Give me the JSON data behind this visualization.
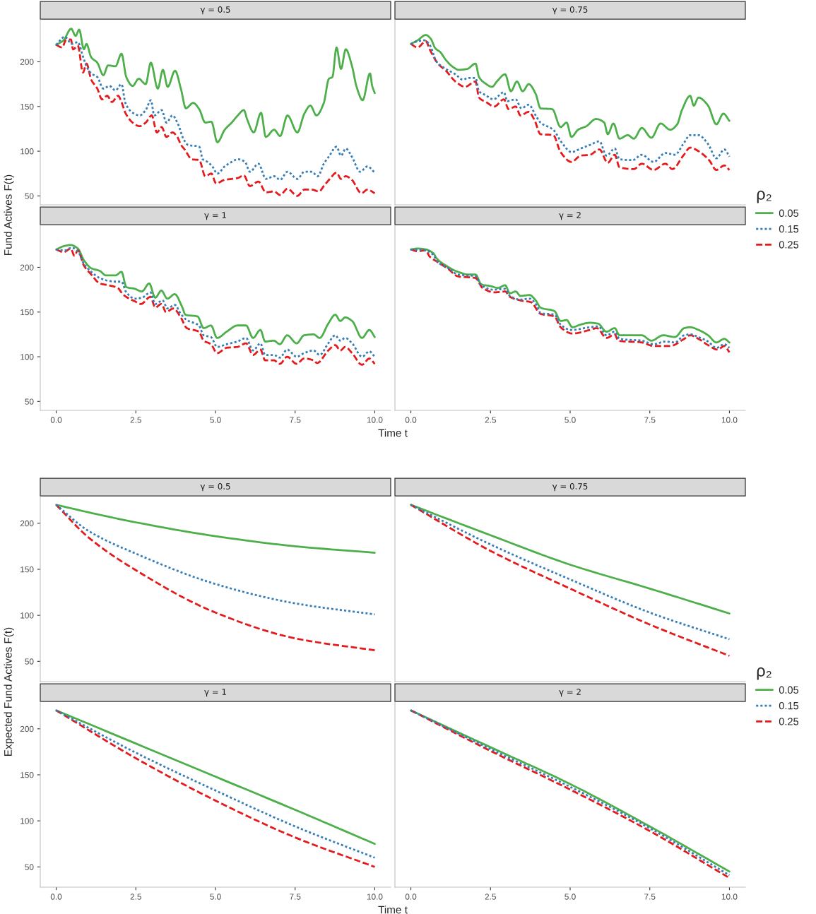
{
  "chart_data": [
    {
      "type": "line",
      "title": "γ = 0.5",
      "ylabel": "Fund Actives F(t)",
      "legend": "right",
      "legend_title": "ρ₂",
      "xlim": [
        -0.5,
        10.5
      ],
      "ylim": [
        40,
        247
      ],
      "yticks": [
        50,
        100,
        150,
        200
      ],
      "tick_labels": "y",
      "series": [
        {
          "name": "0.05",
          "color": "#4daf4a",
          "line_style": "solid",
          "x": [
            0,
            0.23,
            0.47,
            0.61,
            0.72,
            0.87,
            0.95,
            1.1,
            1.29,
            1.48,
            1.63,
            1.86,
            2.05,
            2.2,
            2.4,
            2.59,
            2.81,
            2.97,
            3.19,
            3.35,
            3.5,
            3.73,
            3.92,
            4.07,
            4.3,
            4.49,
            4.68,
            4.87,
            5.06,
            5.29,
            5.51,
            5.7,
            5.89,
            6.0,
            6.2,
            6.43,
            6.58,
            6.84,
            7.03,
            7.26,
            7.57,
            7.79,
            7.98,
            8.17,
            8.4,
            8.56,
            8.67,
            8.8,
            8.94,
            9.09,
            9.28,
            9.43,
            9.62,
            9.85,
            9.92,
            10
          ],
          "values": [
            219,
            224,
            237,
            229,
            236,
            214,
            220,
            205,
            199,
            185,
            196,
            195,
            209,
            183,
            173,
            181,
            175,
            199,
            170,
            191,
            172,
            190,
            169,
            148,
            154,
            147,
            132,
            133,
            110,
            124,
            132,
            140,
            146,
            135,
            121,
            143,
            116,
            124,
            117,
            140,
            121,
            142,
            151,
            140,
            154,
            181,
            183,
            216,
            192,
            214,
            196,
            172,
            157,
            187,
            173,
            165
          ]
        },
        {
          "name": "0.15",
          "color": "#377eb8",
          "line_style": "dotted",
          "x": [
            0,
            0.27,
            0.49,
            0.68,
            0.84,
            0.95,
            1.1,
            1.29,
            1.48,
            1.67,
            1.86,
            2.05,
            2.17,
            2.4,
            2.62,
            2.81,
            2.97,
            3.08,
            3.31,
            3.46,
            3.65,
            3.84,
            3.99,
            4.14,
            4.49,
            4.6,
            4.75,
            4.9,
            5.06,
            5.29,
            5.51,
            5.7,
            5.93,
            6.08,
            6.35,
            6.58,
            6.84,
            7.03,
            7.26,
            7.57,
            7.79,
            8.02,
            8.21,
            8.4,
            8.56,
            8.8,
            8.94,
            9.09,
            9.28,
            9.54,
            9.77,
            10
          ],
          "values": [
            219,
            228,
            220,
            222,
            206,
            195,
            187,
            183,
            170,
            173,
            168,
            175,
            154,
            143,
            140,
            146,
            157,
            140,
            146,
            132,
            140,
            129,
            114,
            107,
            105,
            91,
            88,
            83,
            75,
            83,
            88,
            91,
            88,
            77,
            86,
            69,
            72,
            68,
            77,
            69,
            77,
            77,
            72,
            86,
            94,
            105,
            95,
            103,
            94,
            77,
            83,
            76
          ]
        },
        {
          "name": "0.25",
          "color": "#e41a1c",
          "line_style": "dashed",
          "x": [
            0,
            0.19,
            0.3,
            0.46,
            0.53,
            0.68,
            0.84,
            0.95,
            1.1,
            1.29,
            1.44,
            1.6,
            1.75,
            1.94,
            2.05,
            2.17,
            2.4,
            2.62,
            2.81,
            3.0,
            3.16,
            3.31,
            3.46,
            3.65,
            3.8,
            3.92,
            4.03,
            4.26,
            4.49,
            4.68,
            4.87,
            5.02,
            5.29,
            5.51,
            5.7,
            5.89,
            6.08,
            6.35,
            6.58,
            6.84,
            7.03,
            7.26,
            7.57,
            7.79,
            8.02,
            8.25,
            8.4,
            8.59,
            8.8,
            8.94,
            9.09,
            9.28,
            9.58,
            9.77,
            10
          ],
          "values": [
            219,
            216,
            224,
            225,
            214,
            218,
            188,
            198,
            180,
            170,
            158,
            162,
            155,
            162,
            155,
            143,
            132,
            128,
            132,
            140,
            121,
            127,
            116,
            121,
            116,
            107,
            102,
            91,
            90,
            72,
            75,
            64,
            68,
            69,
            70,
            73,
            61,
            66,
            54,
            55,
            51,
            58,
            50,
            57,
            57,
            55,
            61,
            69,
            76,
            69,
            72,
            68,
            53,
            57,
            53
          ]
        }
      ]
    },
    {
      "type": "line",
      "title": "γ = 0.75",
      "legend": "right",
      "legend_title": "ρ₂",
      "xlim": [
        -0.5,
        10.5
      ],
      "ylim": [
        40,
        247
      ],
      "tick_labels": false,
      "series": [
        {
          "name": "0.05",
          "color": "#4daf4a",
          "line_style": "solid",
          "x": [
            0,
            0.21,
            0.47,
            0.62,
            0.77,
            0.92,
            1.1,
            1.33,
            1.5,
            1.77,
            2.03,
            2.14,
            2.33,
            2.55,
            2.7,
            2.96,
            3.14,
            3.33,
            3.51,
            3.7,
            3.92,
            4.07,
            4.44,
            4.7,
            4.89,
            5.04,
            5.25,
            5.51,
            5.81,
            6.07,
            6.18,
            6.36,
            6.55,
            6.81,
            7.0,
            7.25,
            7.55,
            7.84,
            8.14,
            8.36,
            8.51,
            8.77,
            8.88,
            9.03,
            9.33,
            9.59,
            9.81,
            10
          ],
          "values": [
            220,
            224,
            230,
            226,
            215,
            211,
            202,
            194,
            191,
            192,
            198,
            183,
            176,
            172,
            178,
            186,
            167,
            178,
            167,
            175,
            164,
            148,
            147,
            127,
            132,
            116,
            124,
            128,
            136,
            132,
            119,
            131,
            114,
            118,
            114,
            126,
            115,
            131,
            124,
            130,
            146,
            162,
            151,
            160,
            151,
            130,
            142,
            134
          ]
        },
        {
          "name": "0.15",
          "color": "#377eb8",
          "line_style": "dotted",
          "x": [
            0,
            0.21,
            0.44,
            0.59,
            0.81,
            1.1,
            1.4,
            1.63,
            1.81,
            2.03,
            2.14,
            2.33,
            2.59,
            2.92,
            3.03,
            3.29,
            3.47,
            3.7,
            3.92,
            4.07,
            4.47,
            4.73,
            5.04,
            5.33,
            5.62,
            5.92,
            6.14,
            6.4,
            6.55,
            6.96,
            7.25,
            7.62,
            7.99,
            8.29,
            8.55,
            8.77,
            9.03,
            9.33,
            9.59,
            9.84,
            10
          ],
          "values": [
            220,
            223,
            224,
            219,
            200,
            192,
            186,
            180,
            182,
            182,
            167,
            163,
            158,
            166,
            156,
            158,
            148,
            152,
            140,
            132,
            124,
            110,
            99,
            103,
            107,
            111,
            95,
            103,
            91,
            90,
            96,
            88,
            98,
            96,
            108,
            118,
            118,
            108,
            92,
            102,
            94
          ]
        },
        {
          "name": "0.25",
          "color": "#e41a1c",
          "line_style": "dashed",
          "x": [
            0,
            0.21,
            0.47,
            0.59,
            0.85,
            1.1,
            1.4,
            1.7,
            2.03,
            2.14,
            2.36,
            2.62,
            2.92,
            3.07,
            3.29,
            3.44,
            3.7,
            3.88,
            4.07,
            4.47,
            4.7,
            5.04,
            5.33,
            5.62,
            5.92,
            6.18,
            6.4,
            6.55,
            7.0,
            7.25,
            7.62,
            7.99,
            8.21,
            8.55,
            8.77,
            9.03,
            9.36,
            9.59,
            9.84,
            10
          ],
          "values": [
            220,
            216,
            223,
            214,
            198,
            190,
            178,
            172,
            178,
            160,
            155,
            150,
            158,
            147,
            150,
            140,
            144,
            135,
            119,
            118,
            99,
            88,
            95,
            96,
            102,
            87,
            96,
            82,
            80,
            86,
            79,
            86,
            80,
            95,
            104,
            100,
            90,
            79,
            84,
            79
          ]
        }
      ]
    },
    {
      "type": "line",
      "title": "γ = 1",
      "xlabel": "Time t",
      "xlim": [
        -0.5,
        10.5
      ],
      "ylim": [
        40,
        247
      ],
      "xticks": [
        {
          "value": 0,
          "label": "0.0"
        },
        {
          "value": 2.5,
          "label": "2.5"
        },
        {
          "value": 5,
          "label": "5.0"
        },
        {
          "value": 7.5,
          "label": "7.5"
        },
        {
          "value": 10,
          "label": "10.0"
        }
      ],
      "yticks": [
        50,
        100,
        150,
        200
      ],
      "series": [
        {
          "name": "0.05",
          "color": "#4daf4a",
          "line_style": "solid",
          "x": [
            0,
            0.27,
            0.46,
            0.68,
            0.87,
            1.1,
            1.37,
            1.56,
            1.86,
            2.05,
            2.2,
            2.47,
            2.69,
            2.92,
            3.11,
            3.3,
            3.49,
            3.72,
            3.95,
            4.06,
            4.44,
            4.63,
            4.86,
            5.05,
            5.35,
            5.69,
            5.96,
            6.18,
            6.41,
            6.56,
            6.83,
            7.02,
            7.25,
            7.55,
            7.78,
            8.08,
            8.27,
            8.54,
            8.76,
            8.92,
            9.07,
            9.29,
            9.6,
            9.83,
            10
          ],
          "values": [
            220,
            224,
            225,
            221,
            208,
            199,
            196,
            191,
            191,
            195,
            178,
            176,
            173,
            182,
            166,
            174,
            165,
            170,
            156,
            147,
            145,
            132,
            135,
            121,
            128,
            135,
            135,
            121,
            130,
            117,
            118,
            114,
            124,
            115,
            124,
            125,
            121,
            137,
            147,
            140,
            144,
            140,
            121,
            130,
            122
          ]
        },
        {
          "name": "0.15",
          "color": "#377eb8",
          "line_style": "dotted",
          "x": [
            0,
            0.27,
            0.49,
            0.68,
            0.87,
            1.1,
            1.37,
            1.63,
            1.86,
            2.05,
            2.2,
            2.47,
            2.69,
            2.96,
            3.11,
            3.34,
            3.49,
            3.72,
            3.91,
            4.1,
            4.48,
            4.63,
            4.86,
            5.05,
            5.35,
            5.69,
            5.96,
            6.18,
            6.41,
            6.56,
            6.83,
            7.02,
            7.25,
            7.55,
            7.78,
            8.08,
            8.27,
            8.54,
            8.76,
            8.92,
            9.07,
            9.29,
            9.6,
            9.83,
            10
          ],
          "values": [
            220,
            219,
            222,
            218,
            204,
            195,
            188,
            185,
            184,
            184,
            172,
            165,
            166,
            172,
            159,
            163,
            154,
            158,
            148,
            141,
            135,
            124,
            122,
            111,
            114,
            117,
            121,
            107,
            115,
            102,
            102,
            99,
            108,
            100,
            104,
            107,
            102,
            115,
            124,
            118,
            121,
            115,
            100,
            106,
            100
          ]
        },
        {
          "name": "0.25",
          "color": "#e41a1c",
          "line_style": "dashed",
          "x": [
            0,
            0.23,
            0.46,
            0.57,
            0.68,
            0.87,
            1.1,
            1.37,
            1.63,
            1.93,
            2.09,
            2.24,
            2.47,
            2.66,
            2.96,
            3.11,
            3.3,
            3.45,
            3.68,
            3.91,
            4.1,
            4.48,
            4.63,
            4.86,
            5.05,
            5.35,
            5.69,
            5.96,
            6.18,
            6.41,
            6.56,
            6.83,
            7.02,
            7.25,
            7.55,
            7.78,
            8.08,
            8.19,
            8.54,
            8.76,
            8.92,
            9.07,
            9.29,
            9.6,
            9.83,
            10
          ],
          "values": [
            220,
            217,
            221,
            213,
            219,
            202,
            192,
            182,
            180,
            177,
            170,
            166,
            162,
            159,
            167,
            155,
            159,
            150,
            154,
            144,
            132,
            128,
            118,
            114,
            104,
            110,
            111,
            115,
            102,
            108,
            96,
            96,
            92,
            100,
            92,
            98,
            96,
            93,
            107,
            113,
            107,
            111,
            104,
            91,
            98,
            92
          ]
        }
      ]
    },
    {
      "type": "line",
      "title": "γ = 2",
      "xlim": [
        -0.5,
        10.5
      ],
      "ylim": [
        40,
        247
      ],
      "xticks": [
        {
          "value": 0,
          "label": "0.0"
        },
        {
          "value": 2.5,
          "label": "2.5"
        },
        {
          "value": 5,
          "label": "5.0"
        },
        {
          "value": 7.5,
          "label": "7.5"
        },
        {
          "value": 10,
          "label": "10.0"
        }
      ],
      "tick_labels": "x",
      "series": [
        {
          "name": "0.05",
          "color": "#4daf4a",
          "line_style": "solid",
          "x": [
            0,
            0.21,
            0.47,
            0.7,
            0.81,
            1.1,
            1.4,
            1.56,
            1.77,
            2.03,
            2.21,
            2.51,
            2.73,
            2.96,
            3.11,
            3.29,
            3.44,
            3.73,
            3.92,
            4.07,
            4.51,
            4.7,
            4.89,
            5.07,
            5.33,
            5.62,
            5.88,
            6.14,
            6.4,
            6.55,
            6.88,
            7.25,
            7.55,
            7.92,
            8.29,
            8.58,
            8.77,
            9.03,
            9.33,
            9.59,
            9.84,
            10
          ],
          "values": [
            220,
            221,
            220,
            216,
            210,
            202,
            196,
            194,
            192,
            192,
            181,
            179,
            177,
            180,
            171,
            173,
            168,
            169,
            163,
            155,
            151,
            140,
            141,
            133,
            136,
            138,
            137,
            128,
            132,
            124,
            124,
            124,
            118,
            124,
            122,
            132,
            133,
            130,
            124,
            116,
            120,
            116
          ]
        },
        {
          "name": "0.15",
          "color": "#377eb8",
          "line_style": "dotted",
          "x": [
            0,
            0.47,
            0.7,
            0.84,
            1.18,
            1.47,
            2.03,
            2.21,
            2.59,
            2.96,
            3.11,
            3.44,
            3.73,
            3.96,
            4.07,
            4.51,
            4.7,
            5.03,
            5.62,
            5.88,
            6.14,
            6.4,
            6.55,
            7.25,
            7.62,
            7.99,
            8.29,
            8.58,
            8.77,
            9.03,
            9.33,
            9.59,
            9.84,
            10
          ],
          "values": [
            220,
            219,
            214,
            206,
            199,
            192,
            190,
            180,
            175,
            176,
            168,
            164,
            165,
            157,
            149,
            147,
            136,
            130,
            133,
            134,
            124,
            128,
            120,
            118,
            114,
            117,
            116,
            124,
            125,
            122,
            117,
            110,
            114,
            110
          ]
        },
        {
          "name": "0.25",
          "color": "#e41a1c",
          "line_style": "dashed",
          "x": [
            0,
            0.21,
            0.47,
            0.59,
            0.84,
            1.18,
            1.47,
            2.03,
            2.25,
            2.62,
            2.96,
            3.11,
            3.44,
            3.77,
            4.07,
            4.51,
            4.7,
            5.07,
            5.62,
            5.84,
            6.14,
            6.4,
            6.51,
            7.25,
            7.62,
            8.14,
            8.58,
            8.77,
            9.03,
            9.33,
            9.63,
            9.84,
            10
          ],
          "values": [
            220,
            218,
            219,
            212,
            206,
            198,
            190,
            188,
            177,
            172,
            173,
            167,
            163,
            161,
            148,
            145,
            133,
            126,
            130,
            132,
            121,
            125,
            118,
            116,
            112,
            112,
            120,
            124,
            120,
            113,
            108,
            112,
            105
          ]
        }
      ]
    },
    {
      "type": "line",
      "title": "γ = 0.5",
      "ylabel": "Expected Fund Actives F(t)",
      "xlim": [
        -0.5,
        10.5
      ],
      "ylim": [
        28,
        229
      ],
      "yticks": [
        50,
        100,
        150,
        200
      ],
      "tick_labels": "y",
      "series": [
        {
          "name": "0.05",
          "color": "#4daf4a",
          "line_style": "solid",
          "x": [
            0,
            1,
            2.5,
            5,
            7.5,
            10
          ],
          "values": [
            220,
            212,
            201,
            186,
            175,
            168
          ]
        },
        {
          "name": "0.15",
          "color": "#377eb8",
          "line_style": "dotted",
          "x": [
            0,
            1,
            2.5,
            5,
            7.5,
            10
          ],
          "values": [
            220,
            192,
            167,
            134,
            113,
            101
          ]
        },
        {
          "name": "0.25",
          "color": "#e41a1c",
          "line_style": "dashed",
          "x": [
            0,
            1,
            2.5,
            5,
            7.5,
            10
          ],
          "values": [
            220,
            185,
            149,
            103,
            75,
            62
          ]
        }
      ]
    },
    {
      "type": "line",
      "title": "γ = 0.75",
      "xlim": [
        -0.5,
        10.5
      ],
      "ylim": [
        28,
        229
      ],
      "tick_labels": false,
      "series": [
        {
          "name": "0.05",
          "color": "#4daf4a",
          "line_style": "solid",
          "x": [
            0,
            2.5,
            5,
            7.5,
            10
          ],
          "values": [
            220,
            187,
            155,
            129,
            102
          ]
        },
        {
          "name": "0.15",
          "color": "#377eb8",
          "line_style": "dotted",
          "x": [
            0,
            2.5,
            5,
            7.5,
            10
          ],
          "values": [
            220,
            177,
            139,
            103,
            74
          ]
        },
        {
          "name": "0.25",
          "color": "#e41a1c",
          "line_style": "dashed",
          "x": [
            0,
            2.5,
            5,
            7.5,
            10
          ],
          "values": [
            220,
            170,
            129,
            90,
            56
          ]
        }
      ]
    },
    {
      "type": "line",
      "title": "γ = 1",
      "xlabel": "Time t",
      "xlim": [
        -0.5,
        10.5
      ],
      "ylim": [
        28,
        229
      ],
      "xticks": [
        {
          "value": 0,
          "label": "0.0"
        },
        {
          "value": 2.5,
          "label": "2.5"
        },
        {
          "value": 5,
          "label": "5.0"
        },
        {
          "value": 7.5,
          "label": "7.5"
        },
        {
          "value": 10,
          "label": "10.0"
        }
      ],
      "yticks": [
        50,
        100,
        150,
        200
      ],
      "series": [
        {
          "name": "0.05",
          "color": "#4daf4a",
          "line_style": "solid",
          "x": [
            0,
            2.5,
            5,
            7.5,
            10
          ],
          "values": [
            220,
            184,
            148,
            112,
            75
          ]
        },
        {
          "name": "0.15",
          "color": "#377eb8",
          "line_style": "dotted",
          "x": [
            0,
            2.5,
            5,
            7.5,
            10
          ],
          "values": [
            220,
            174,
            133,
            94,
            60
          ]
        },
        {
          "name": "0.25",
          "color": "#e41a1c",
          "line_style": "dashed",
          "x": [
            0,
            2.5,
            5,
            7.5,
            10
          ],
          "values": [
            220,
            168,
            122,
            82,
            50
          ]
        }
      ]
    },
    {
      "type": "line",
      "title": "γ = 2",
      "xlim": [
        -0.5,
        10.5
      ],
      "ylim": [
        28,
        229
      ],
      "xticks": [
        {
          "value": 0,
          "label": "0.0"
        },
        {
          "value": 2.5,
          "label": "2.5"
        },
        {
          "value": 5,
          "label": "5.0"
        },
        {
          "value": 7.5,
          "label": "7.5"
        },
        {
          "value": 10,
          "label": "10.0"
        }
      ],
      "tick_labels": "x",
      "series": [
        {
          "name": "0.05",
          "color": "#4daf4a",
          "line_style": "solid",
          "x": [
            0,
            2.5,
            5,
            7.5,
            10
          ],
          "values": [
            220,
            180,
            140,
            94,
            45
          ]
        },
        {
          "name": "0.15",
          "color": "#377eb8",
          "line_style": "dotted",
          "x": [
            0,
            2.5,
            5,
            7.5,
            10
          ],
          "values": [
            220,
            178,
            137,
            92,
            41
          ]
        },
        {
          "name": "0.25",
          "color": "#e41a1c",
          "line_style": "dashed",
          "x": [
            0,
            2.5,
            5,
            7.5,
            10
          ],
          "values": [
            220,
            176,
            134,
            89,
            38
          ]
        }
      ]
    }
  ]
}
